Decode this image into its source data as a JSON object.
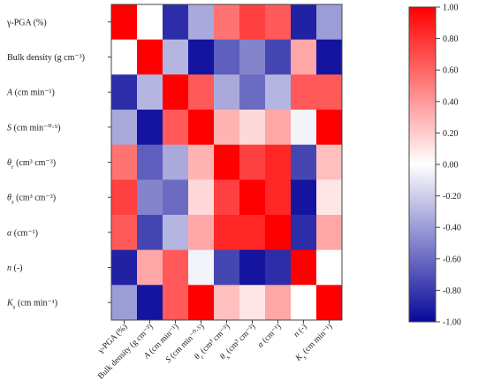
{
  "chart_data": {
    "type": "heatmap",
    "variables": [
      {
        "base": "γ-PGA",
        "sub": "",
        "rest": " (%)",
        "italic": false
      },
      {
        "base": "Bulk density",
        "sub": "",
        "rest": " (g cm⁻³)",
        "italic": false
      },
      {
        "base": "A",
        "sub": "",
        "rest": " (cm min⁻¹)",
        "italic": true
      },
      {
        "base": "S",
        "sub": "",
        "rest": " (cm min⁻⁰·⁵)",
        "italic": true
      },
      {
        "base": "θ",
        "sub": "r",
        "rest": " (cm³ cm⁻³)",
        "italic": true
      },
      {
        "base": "θ",
        "sub": "s",
        "rest": " (cm³ cm⁻³)",
        "italic": true
      },
      {
        "base": "α",
        "sub": "",
        "rest": " (cm⁻¹)",
        "italic": true
      },
      {
        "base": "n",
        "sub": "",
        "rest": " (-)",
        "italic": true
      },
      {
        "base": "K",
        "sub": "s",
        "rest": " (cm min⁻¹)",
        "italic": true
      }
    ],
    "values": [
      [
        1.0,
        0.0,
        -0.85,
        -0.35,
        0.55,
        0.75,
        0.65,
        -0.9,
        -0.4
      ],
      [
        0.0,
        1.0,
        -0.3,
        -0.95,
        -0.65,
        -0.5,
        -0.75,
        0.35,
        -0.95
      ],
      [
        -0.85,
        -0.3,
        1.0,
        0.65,
        -0.35,
        -0.6,
        -0.3,
        0.65,
        0.65
      ],
      [
        -0.35,
        -0.95,
        0.65,
        1.0,
        0.3,
        0.15,
        0.35,
        -0.05,
        1.0
      ],
      [
        0.55,
        -0.65,
        -0.35,
        0.3,
        1.0,
        0.75,
        0.85,
        -0.75,
        0.25
      ],
      [
        0.75,
        -0.5,
        -0.6,
        0.15,
        0.75,
        1.0,
        0.85,
        -0.95,
        0.1
      ],
      [
        0.65,
        -0.75,
        -0.3,
        0.35,
        0.85,
        0.85,
        1.0,
        -0.85,
        0.35
      ],
      [
        -0.9,
        0.35,
        0.65,
        -0.05,
        -0.75,
        -0.95,
        -0.85,
        1.0,
        0.0
      ],
      [
        -0.4,
        -0.95,
        0.65,
        1.0,
        0.25,
        0.1,
        0.35,
        0.0,
        1.0
      ]
    ],
    "colorbar": {
      "min": -1.0,
      "max": 1.0,
      "ticks": [
        "1.00",
        "0.80",
        "0.60",
        "0.40",
        "0.20",
        "0.00",
        "-0.20",
        "-0.40",
        "-0.60",
        "-0.80",
        "-1.00"
      ],
      "colors": [
        "#08089a",
        "#ffffff",
        "#ff0000"
      ]
    }
  }
}
